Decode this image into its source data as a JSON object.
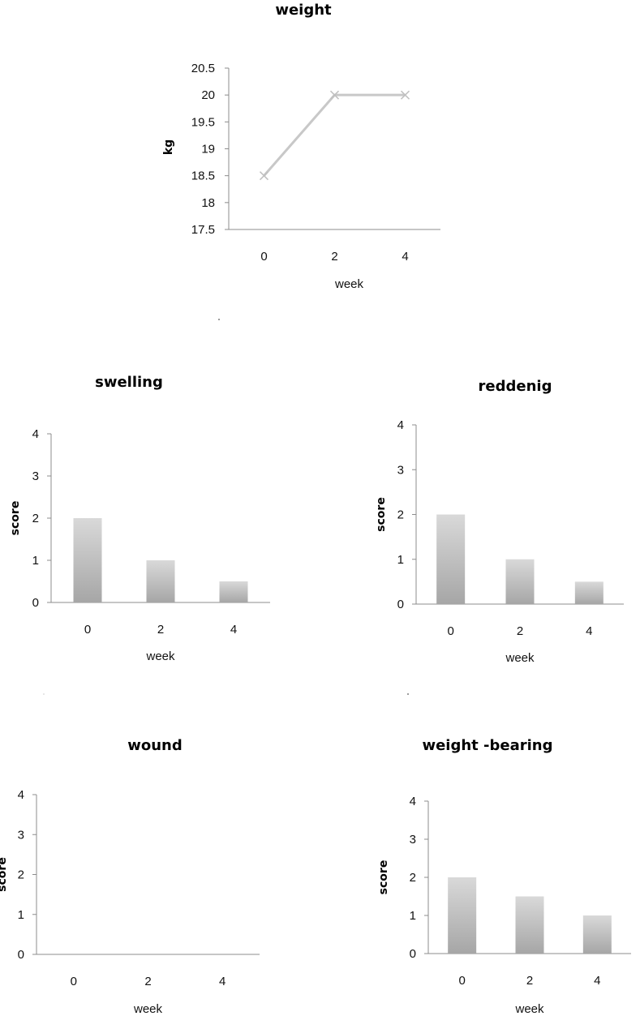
{
  "chart_data": [
    {
      "id": "weight",
      "type": "line",
      "title": "weight",
      "xlabel": "week",
      "ylabel": "kg",
      "categories": [
        "0",
        "2",
        "4"
      ],
      "values": [
        18.5,
        20,
        20
      ],
      "ylim": [
        17.5,
        20.5
      ],
      "yticks": [
        "17.5",
        "18",
        "18.5",
        "19",
        "19.5",
        "20",
        "20.5"
      ],
      "grid": false,
      "marker": "x",
      "colors": {
        "series": "#c8c8c8",
        "axis": "#8c8c8c"
      }
    },
    {
      "id": "swelling",
      "type": "bar",
      "title": "swelling",
      "xlabel": "week",
      "ylabel": "score",
      "categories": [
        "0",
        "2",
        "4"
      ],
      "values": [
        2,
        1,
        0.5
      ],
      "ylim": [
        0,
        4
      ],
      "yticks": [
        "0",
        "1",
        "2",
        "3",
        "4"
      ],
      "grid": false,
      "colors": {
        "bar_top": "#d9d9d9",
        "bar_bottom": "#a6a6a6",
        "axis": "#8c8c8c"
      }
    },
    {
      "id": "reddenig",
      "type": "bar",
      "title": "reddenig",
      "xlabel": "week",
      "ylabel": "score",
      "categories": [
        "0",
        "2",
        "4"
      ],
      "values": [
        2,
        1,
        0.5
      ],
      "ylim": [
        0,
        4
      ],
      "yticks": [
        "0",
        "1",
        "2",
        "3",
        "4"
      ],
      "grid": false,
      "colors": {
        "bar_top": "#d9d9d9",
        "bar_bottom": "#a6a6a6",
        "axis": "#8c8c8c"
      }
    },
    {
      "id": "wound",
      "type": "bar",
      "title": "wound",
      "xlabel": "week",
      "ylabel": "score",
      "categories": [
        "0",
        "2",
        "4"
      ],
      "values": [
        0,
        0,
        0
      ],
      "ylim": [
        0,
        4
      ],
      "yticks": [
        "0",
        "1",
        "2",
        "3",
        "4"
      ],
      "grid": false,
      "colors": {
        "bar_top": "#d9d9d9",
        "bar_bottom": "#a6a6a6",
        "axis": "#8c8c8c"
      }
    },
    {
      "id": "weight-bearing",
      "type": "bar",
      "title": "weight -bearing",
      "xlabel": "week",
      "ylabel": "score",
      "categories": [
        "0",
        "2",
        "4"
      ],
      "values": [
        2,
        1.5,
        1
      ],
      "ylim": [
        0,
        4
      ],
      "yticks": [
        "0",
        "1",
        "2",
        "3",
        "4"
      ],
      "grid": false,
      "colors": {
        "bar_top": "#d9d9d9",
        "bar_bottom": "#a6a6a6",
        "axis": "#8c8c8c"
      }
    }
  ]
}
